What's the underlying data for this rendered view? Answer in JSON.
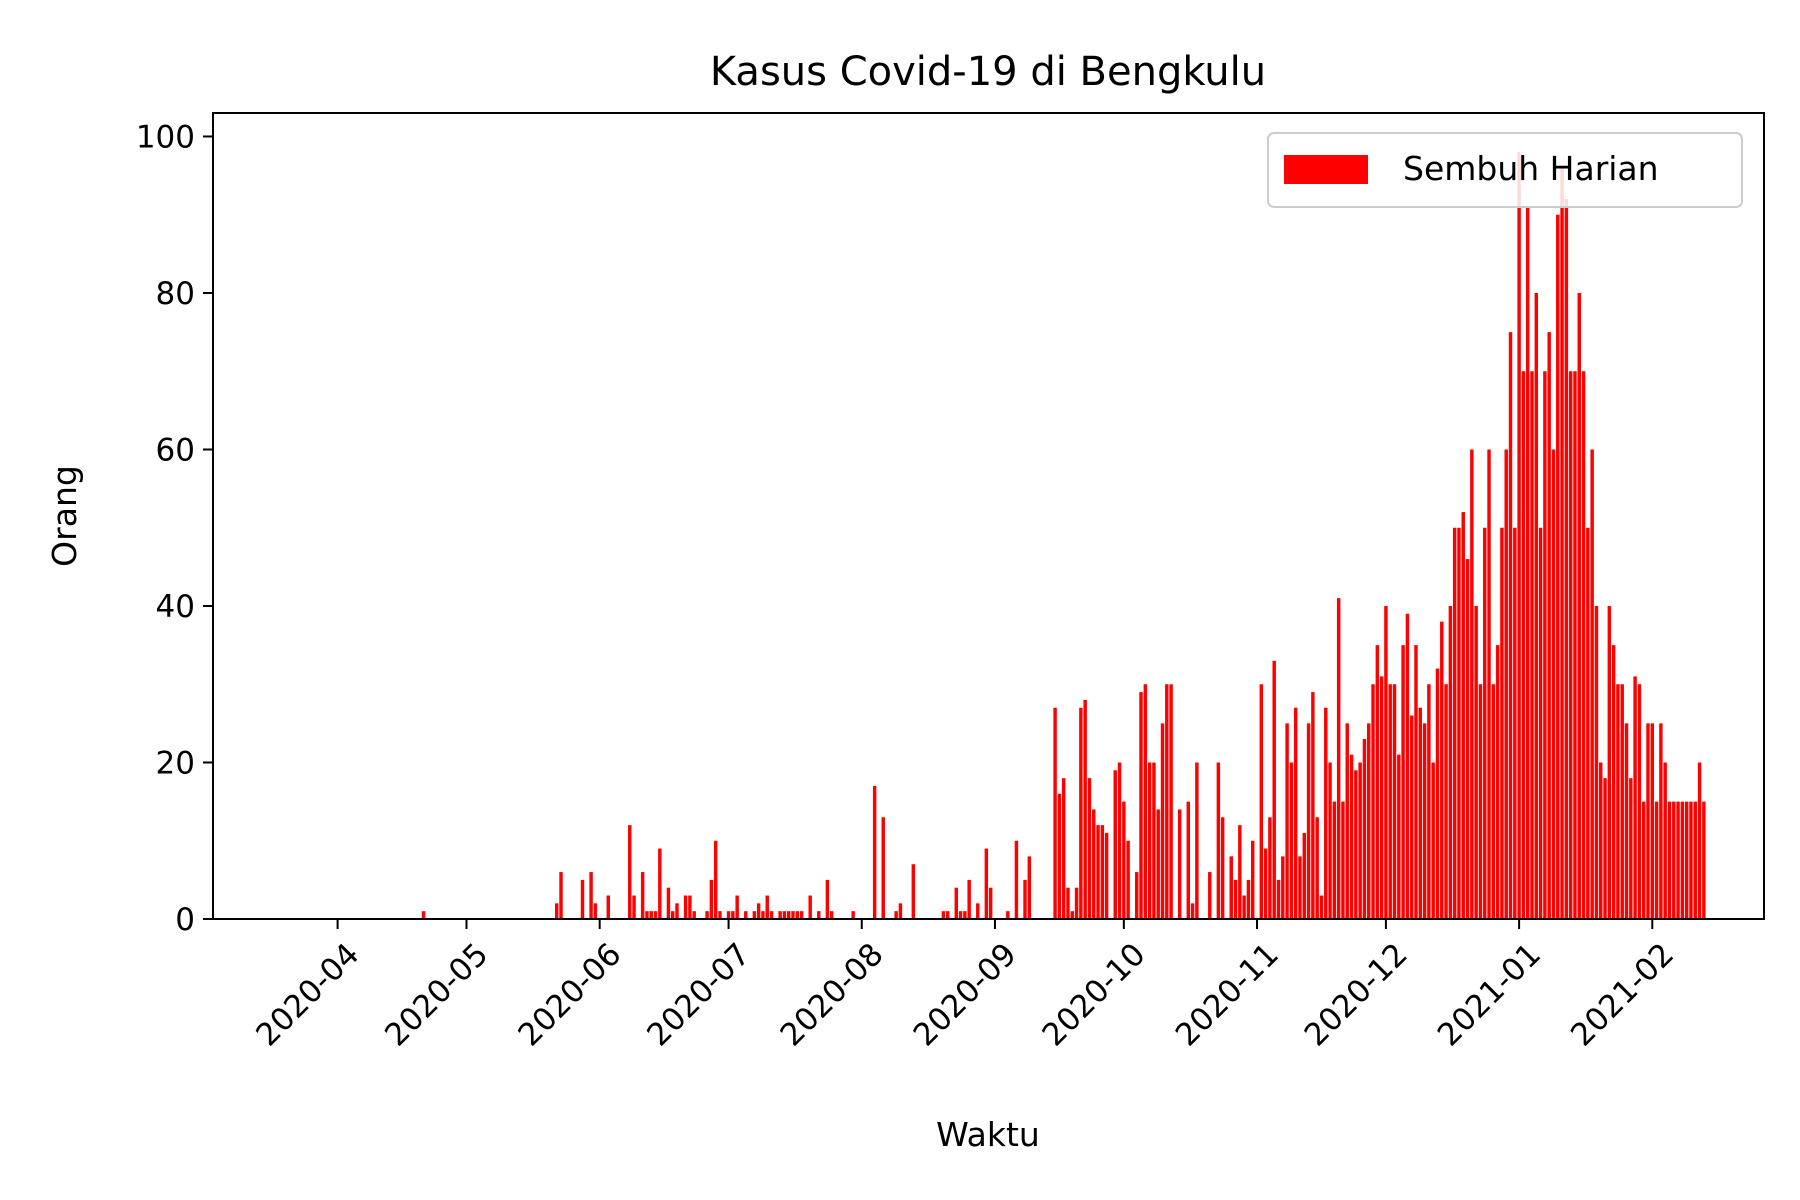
{
  "chart_data": {
    "type": "bar",
    "title": "Kasus Covid-19 di Bengkulu",
    "xlabel": "Waktu",
    "ylabel": "Orang",
    "ylim": [
      0,
      103
    ],
    "xlim": [
      "2020-03-03",
      "2021-02-27"
    ],
    "grid": false,
    "legend_position": "top-right",
    "x_ticks": [
      "2020-04",
      "2020-05",
      "2020-06",
      "2020-07",
      "2020-08",
      "2020-09",
      "2020-10",
      "2020-11",
      "2020-12",
      "2021-01",
      "2021-02"
    ],
    "y_ticks": [
      0,
      20,
      40,
      60,
      80,
      100
    ],
    "series": [
      {
        "name": "Sembuh Harian",
        "color": "#ff0000",
        "points": [
          [
            "2020-04-21",
            1
          ],
          [
            "2020-05-22",
            2
          ],
          [
            "2020-05-23",
            6
          ],
          [
            "2020-05-28",
            5
          ],
          [
            "2020-05-30",
            6
          ],
          [
            "2020-05-31",
            2
          ],
          [
            "2020-06-03",
            3
          ],
          [
            "2020-06-08",
            12
          ],
          [
            "2020-06-09",
            3
          ],
          [
            "2020-06-11",
            6
          ],
          [
            "2020-06-12",
            1
          ],
          [
            "2020-06-13",
            1
          ],
          [
            "2020-06-14",
            1
          ],
          [
            "2020-06-15",
            9
          ],
          [
            "2020-06-17",
            4
          ],
          [
            "2020-06-18",
            1
          ],
          [
            "2020-06-19",
            2
          ],
          [
            "2020-06-21",
            3
          ],
          [
            "2020-06-22",
            3
          ],
          [
            "2020-06-23",
            1
          ],
          [
            "2020-06-26",
            1
          ],
          [
            "2020-06-27",
            5
          ],
          [
            "2020-06-28",
            10
          ],
          [
            "2020-06-29",
            1
          ],
          [
            "2020-07-01",
            1
          ],
          [
            "2020-07-02",
            1
          ],
          [
            "2020-07-03",
            3
          ],
          [
            "2020-07-05",
            1
          ],
          [
            "2020-07-07",
            1
          ],
          [
            "2020-07-08",
            2
          ],
          [
            "2020-07-09",
            1
          ],
          [
            "2020-07-10",
            3
          ],
          [
            "2020-07-11",
            1
          ],
          [
            "2020-07-13",
            1
          ],
          [
            "2020-07-14",
            1
          ],
          [
            "2020-07-15",
            1
          ],
          [
            "2020-07-16",
            1
          ],
          [
            "2020-07-17",
            1
          ],
          [
            "2020-07-18",
            1
          ],
          [
            "2020-07-20",
            3
          ],
          [
            "2020-07-22",
            1
          ],
          [
            "2020-07-24",
            5
          ],
          [
            "2020-07-25",
            1
          ],
          [
            "2020-07-30",
            1
          ],
          [
            "2020-08-04",
            17
          ],
          [
            "2020-08-06",
            13
          ],
          [
            "2020-08-09",
            1
          ],
          [
            "2020-08-10",
            2
          ],
          [
            "2020-08-13",
            7
          ],
          [
            "2020-08-20",
            1
          ],
          [
            "2020-08-21",
            1
          ],
          [
            "2020-08-23",
            4
          ],
          [
            "2020-08-24",
            1
          ],
          [
            "2020-08-25",
            1
          ],
          [
            "2020-08-26",
            5
          ],
          [
            "2020-08-28",
            2
          ],
          [
            "2020-08-30",
            9
          ],
          [
            "2020-08-31",
            4
          ],
          [
            "2020-09-04",
            1
          ],
          [
            "2020-09-06",
            10
          ],
          [
            "2020-09-08",
            5
          ],
          [
            "2020-09-09",
            8
          ],
          [
            "2020-09-15",
            27
          ],
          [
            "2020-09-16",
            16
          ],
          [
            "2020-09-17",
            18
          ],
          [
            "2020-09-18",
            4
          ],
          [
            "2020-09-19",
            1
          ],
          [
            "2020-09-20",
            4
          ],
          [
            "2020-09-21",
            27
          ],
          [
            "2020-09-22",
            28
          ],
          [
            "2020-09-23",
            18
          ],
          [
            "2020-09-24",
            14
          ],
          [
            "2020-09-25",
            12
          ],
          [
            "2020-09-26",
            12
          ],
          [
            "2020-09-27",
            11
          ],
          [
            "2020-09-29",
            19
          ],
          [
            "2020-09-30",
            20
          ],
          [
            "2020-10-01",
            15
          ],
          [
            "2020-10-02",
            10
          ],
          [
            "2020-10-04",
            6
          ],
          [
            "2020-10-05",
            29
          ],
          [
            "2020-10-06",
            30
          ],
          [
            "2020-10-07",
            20
          ],
          [
            "2020-10-08",
            20
          ],
          [
            "2020-10-09",
            14
          ],
          [
            "2020-10-10",
            25
          ],
          [
            "2020-10-11",
            30
          ],
          [
            "2020-10-12",
            30
          ],
          [
            "2020-10-14",
            14
          ],
          [
            "2020-10-16",
            15
          ],
          [
            "2020-10-17",
            2
          ],
          [
            "2020-10-18",
            20
          ],
          [
            "2020-10-21",
            6
          ],
          [
            "2020-10-23",
            20
          ],
          [
            "2020-10-24",
            13
          ],
          [
            "2020-10-26",
            8
          ],
          [
            "2020-10-27",
            5
          ],
          [
            "2020-10-28",
            12
          ],
          [
            "2020-10-29",
            3
          ],
          [
            "2020-10-30",
            5
          ],
          [
            "2020-10-31",
            10
          ],
          [
            "2020-11-02",
            30
          ],
          [
            "2020-11-03",
            9
          ],
          [
            "2020-11-04",
            13
          ],
          [
            "2020-11-05",
            33
          ],
          [
            "2020-11-06",
            5
          ],
          [
            "2020-11-07",
            8
          ],
          [
            "2020-11-08",
            25
          ],
          [
            "2020-11-09",
            20
          ],
          [
            "2020-11-10",
            27
          ],
          [
            "2020-11-11",
            8
          ],
          [
            "2020-11-12",
            11
          ],
          [
            "2020-11-13",
            25
          ],
          [
            "2020-11-14",
            29
          ],
          [
            "2020-11-15",
            13
          ],
          [
            "2020-11-16",
            3
          ],
          [
            "2020-11-17",
            27
          ],
          [
            "2020-11-18",
            20
          ],
          [
            "2020-11-19",
            15
          ],
          [
            "2020-11-20",
            41
          ],
          [
            "2020-11-21",
            15
          ],
          [
            "2020-11-22",
            25
          ],
          [
            "2020-11-23",
            21
          ],
          [
            "2020-11-24",
            19
          ],
          [
            "2020-11-25",
            20
          ],
          [
            "2020-11-26",
            23
          ],
          [
            "2020-11-27",
            25
          ],
          [
            "2020-11-28",
            30
          ],
          [
            "2020-11-29",
            35
          ],
          [
            "2020-11-30",
            31
          ],
          [
            "2020-12-01",
            40
          ],
          [
            "2020-12-02",
            30
          ],
          [
            "2020-12-03",
            30
          ],
          [
            "2020-12-04",
            21
          ],
          [
            "2020-12-05",
            35
          ],
          [
            "2020-12-06",
            39
          ],
          [
            "2020-12-07",
            26
          ],
          [
            "2020-12-08",
            35
          ],
          [
            "2020-12-09",
            27
          ],
          [
            "2020-12-10",
            25
          ],
          [
            "2020-12-11",
            30
          ],
          [
            "2020-12-12",
            20
          ],
          [
            "2020-12-13",
            32
          ],
          [
            "2020-12-14",
            38
          ],
          [
            "2020-12-15",
            30
          ],
          [
            "2020-12-16",
            40
          ],
          [
            "2020-12-17",
            50
          ],
          [
            "2020-12-18",
            50
          ],
          [
            "2020-12-19",
            52
          ],
          [
            "2020-12-20",
            46
          ],
          [
            "2020-12-21",
            60
          ],
          [
            "2020-12-22",
            40
          ],
          [
            "2020-12-23",
            30
          ],
          [
            "2020-12-24",
            50
          ],
          [
            "2020-12-25",
            60
          ],
          [
            "2020-12-26",
            30
          ],
          [
            "2020-12-27",
            35
          ],
          [
            "2020-12-28",
            50
          ],
          [
            "2020-12-29",
            60
          ],
          [
            "2020-12-30",
            75
          ],
          [
            "2020-12-31",
            50
          ],
          [
            "2021-01-01",
            98
          ],
          [
            "2021-01-02",
            70
          ],
          [
            "2021-01-03",
            91
          ],
          [
            "2021-01-04",
            70
          ],
          [
            "2021-01-05",
            80
          ],
          [
            "2021-01-06",
            50
          ],
          [
            "2021-01-07",
            70
          ],
          [
            "2021-01-08",
            75
          ],
          [
            "2021-01-09",
            60
          ],
          [
            "2021-01-10",
            90
          ],
          [
            "2021-01-11",
            96
          ],
          [
            "2021-01-12",
            92
          ],
          [
            "2021-01-13",
            70
          ],
          [
            "2021-01-14",
            70
          ],
          [
            "2021-01-15",
            80
          ],
          [
            "2021-01-16",
            70
          ],
          [
            "2021-01-17",
            50
          ],
          [
            "2021-01-18",
            60
          ],
          [
            "2021-01-19",
            40
          ],
          [
            "2021-01-20",
            20
          ],
          [
            "2021-01-21",
            18
          ],
          [
            "2021-01-22",
            40
          ],
          [
            "2021-01-23",
            35
          ],
          [
            "2021-01-24",
            30
          ],
          [
            "2021-01-25",
            30
          ],
          [
            "2021-01-26",
            25
          ],
          [
            "2021-01-27",
            18
          ],
          [
            "2021-01-28",
            31
          ],
          [
            "2021-01-29",
            30
          ],
          [
            "2021-01-30",
            15
          ],
          [
            "2021-01-31",
            25
          ],
          [
            "2021-02-01",
            25
          ],
          [
            "2021-02-02",
            15
          ],
          [
            "2021-02-03",
            25
          ],
          [
            "2021-02-04",
            20
          ],
          [
            "2021-02-05",
            15
          ],
          [
            "2021-02-06",
            15
          ],
          [
            "2021-02-07",
            15
          ],
          [
            "2021-02-08",
            15
          ],
          [
            "2021-02-09",
            15
          ],
          [
            "2021-02-10",
            15
          ],
          [
            "2021-02-11",
            15
          ],
          [
            "2021-02-12",
            20
          ],
          [
            "2021-02-13",
            15
          ]
        ]
      }
    ]
  }
}
